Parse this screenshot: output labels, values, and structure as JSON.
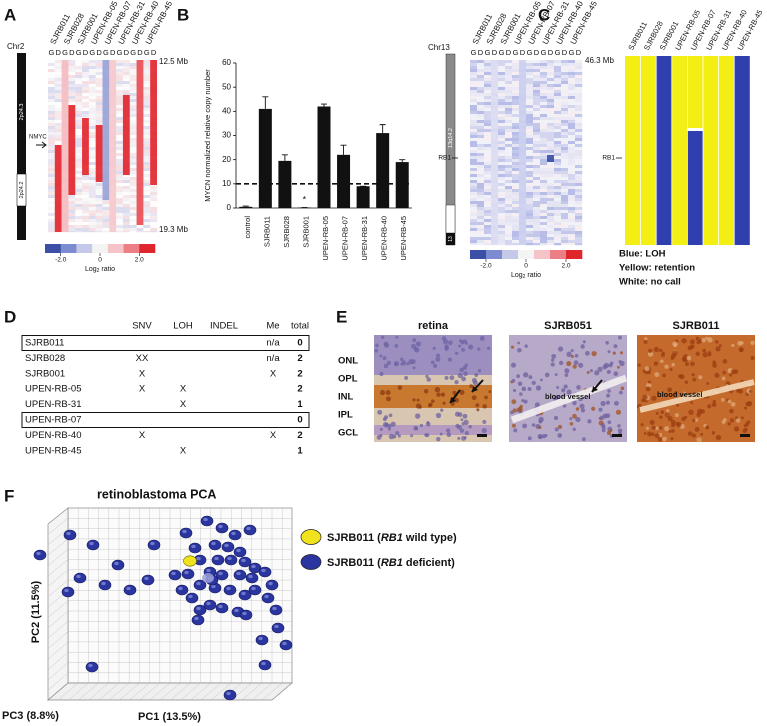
{
  "panel_A": {
    "letter": "A",
    "chromosome": "Chr2",
    "samples": [
      "SJRB011",
      "SJRB028",
      "SJRB001",
      "UPEN-RB-05",
      "UPEN-RB-07",
      "UPEN-RB-31",
      "UPEN-RB-40",
      "UPEN-RB-45"
    ],
    "gd": [
      "G",
      "D"
    ],
    "top_coord": "12.5 Mb",
    "bottom_coord": "19.3 Mb",
    "gene": "NMYC",
    "bands": [
      "2p24.3",
      "2p24.2"
    ],
    "colorbar_lim": [
      -2.8,
      2.8
    ],
    "colorbar_ticks": [
      {
        "value": -2,
        "label": "-2.0"
      },
      0,
      {
        "value": 2,
        "label": "2.0"
      }
    ],
    "colorbar_label": {
      "text": "Log",
      "sub": "2",
      "rest": " ratio"
    }
  },
  "chart_data": {
    "type": "bar",
    "panel": "B",
    "categories": [
      "control",
      "SJRB011",
      "SJRB028",
      "SJRB001",
      "UPEN-RB-05",
      "UPEN-RB-07",
      "UPEN-RB-31",
      "UPEN-RB-40",
      "UPEN-RB-45"
    ],
    "values": [
      0.5,
      41,
      19.5,
      0.2,
      42,
      22,
      9,
      31,
      19
    ],
    "errors": [
      0.3,
      5,
      2.5,
      0,
      1,
      4,
      0,
      3.5,
      1
    ],
    "color": "#111111",
    "ylabel": "MYCN normalized relative copy number",
    "ylim": [
      0,
      60
    ],
    "yticks": [
      0,
      10,
      20,
      30,
      40,
      50,
      60
    ],
    "threshold": 10,
    "annotation": {
      "text": "*",
      "category": "SJRB001"
    }
  },
  "panel_C": {
    "letter": "C",
    "chromosome": "Chr13",
    "samples": [
      "SJRB011",
      "SJRB028",
      "SJRB001",
      "UPEN-RB-05",
      "UPEN-RB-07",
      "UPEN-RB-31",
      "UPEN-RB-40",
      "UPEN-RB-45"
    ],
    "gd": [
      "G",
      "D"
    ],
    "top_coord": "46.3 Mb",
    "gene": "RB1",
    "bands": [
      "13q14.2",
      "13"
    ],
    "colorbar_lim": [
      -2.8,
      2.8
    ],
    "colorbar_ticks": [
      {
        "value": -2,
        "label": "-2.0"
      },
      0,
      {
        "value": 2,
        "label": "2.0"
      }
    ],
    "colorbar_label": {
      "text": "Log",
      "sub": "2",
      "rest": " ratio"
    },
    "loh": {
      "samples": [
        "SJRB011",
        "SJRB028",
        "SJRB001",
        "UPEN-RB-05",
        "UPEN-RB-07",
        "UPEN-RB-31",
        "UPEN-RB-40",
        "UPEN-RB-45"
      ],
      "gene": "RB1",
      "legend": [
        "Blue: LOH",
        "Yellow: retention",
        "White: no call"
      ]
    }
  },
  "panel_D": {
    "letter": "D",
    "columns": [
      "SNV",
      "LOH",
      "INDEL",
      "Me",
      "total"
    ],
    "rows": [
      {
        "sample": "SJRB011",
        "cells": [
          null,
          null,
          null,
          "n/a",
          0
        ],
        "boxed": true
      },
      {
        "sample": "SJRB028",
        "cells": [
          "XX",
          null,
          null,
          "n/a",
          2
        ],
        "boxed": false
      },
      {
        "sample": "SJRB001",
        "cells": [
          "X",
          null,
          null,
          "X",
          2
        ],
        "boxed": false
      },
      {
        "sample": "UPEN-RB-05",
        "cells": [
          "X",
          "X",
          null,
          null,
          2
        ],
        "boxed": false
      },
      {
        "sample": "UPEN-RB-31",
        "cells": [
          null,
          "X",
          null,
          null,
          1
        ],
        "boxed": false
      },
      {
        "sample": "UPEN-RB-07",
        "cells": [
          null,
          null,
          null,
          null,
          0
        ],
        "boxed": true
      },
      {
        "sample": "UPEN-RB-40",
        "cells": [
          "X",
          null,
          null,
          "X",
          2
        ],
        "boxed": false
      },
      {
        "sample": "UPEN-RB-45",
        "cells": [
          null,
          "X",
          null,
          null,
          1
        ],
        "boxed": false
      }
    ]
  },
  "panel_E": {
    "letter": "E",
    "titles": [
      "retina",
      "SJRB051",
      "SJRB011"
    ],
    "layers": [
      "ONL",
      "OPL",
      "INL",
      "IPL",
      "GCL"
    ],
    "annotations": [
      "blood vessel",
      "blood vessel"
    ]
  },
  "panel_F": {
    "letter": "F",
    "title": "retinoblastoma PCA",
    "legend": [
      {
        "prefix": "SJRB011 (",
        "gene": "RB1",
        "suffix": " wild type)",
        "color": "#f0e21c"
      },
      {
        "prefix": "SJRB011 (",
        "gene": "RB1",
        "suffix": " deficient)",
        "color": "#2b35a0"
      }
    ],
    "axes": [
      "PC2 (11.5%)",
      "PC3 (8.8%)",
      "PC1 (13.5%)"
    ]
  }
}
